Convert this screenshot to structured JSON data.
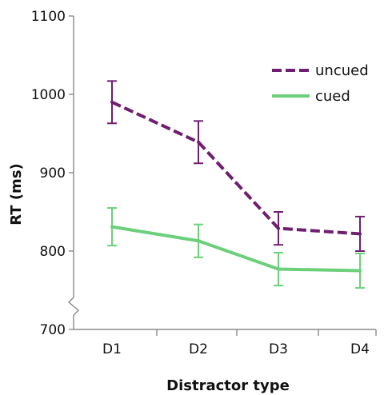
{
  "chart_data": {
    "type": "line",
    "xlabel": "Distractor type",
    "ylabel": "RT (ms)",
    "categories": [
      "D1",
      "D2",
      "D3",
      "D4"
    ],
    "ylim": [
      700,
      1100
    ],
    "yticks": [
      700,
      800,
      900,
      1000,
      1100
    ],
    "axis_break": true,
    "grid": false,
    "legend_position": "top-right",
    "series": [
      {
        "name": "uncued",
        "values": [
          990,
          939,
          829,
          822
        ],
        "error": [
          27,
          27,
          21,
          22
        ],
        "color": "#6f1f6f",
        "dash": true
      },
      {
        "name": "cued",
        "values": [
          831,
          813,
          777,
          775
        ],
        "error": [
          24,
          21,
          21,
          22
        ],
        "color": "#6ccf7a",
        "dash": false
      }
    ]
  }
}
